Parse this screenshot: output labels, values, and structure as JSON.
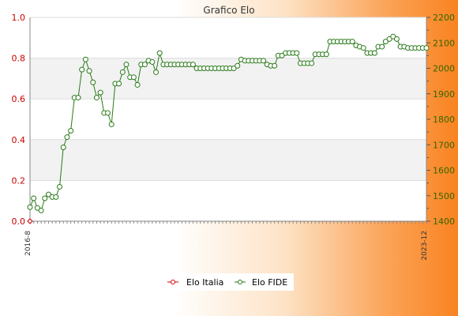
{
  "chart_data": {
    "type": "line",
    "title": "Grafico Elo",
    "y_left": {
      "min": 0,
      "max": 1,
      "ticks": [
        "0.0",
        "0.2",
        "0.4",
        "0.6",
        "0.8",
        "1.0"
      ],
      "color": "#cc0000"
    },
    "y_right": {
      "min": 1400,
      "max": 2200,
      "ticks": [
        "1400",
        "1500",
        "1600",
        "1700",
        "1800",
        "1900",
        "2000",
        "2100",
        "2200"
      ],
      "color": "#336600"
    },
    "x_first_label": "2016-8",
    "x_last_label": "2023-12",
    "grid": true,
    "legend_position": "bottom",
    "series": [
      {
        "name": "Elo Italia",
        "color": "#cc0000",
        "axis": "left",
        "values": [
          0
        ]
      },
      {
        "name": "Elo FIDE",
        "color": "#2a7a1a",
        "axis": "right",
        "values": [
          1455,
          1490,
          1452,
          1442,
          1490,
          1505,
          1495,
          1495,
          1535,
          1690,
          1730,
          1755,
          1885,
          1885,
          1995,
          2035,
          1990,
          1945,
          1885,
          1905,
          1825,
          1825,
          1780,
          1940,
          1940,
          1985,
          2015,
          1965,
          1965,
          1935,
          2015,
          2015,
          2030,
          2025,
          1985,
          2060,
          2015,
          2015,
          2015,
          2015,
          2015,
          2015,
          2015,
          2015,
          2015,
          2000,
          2000,
          2000,
          2000,
          2000,
          2000,
          2000,
          2000,
          2000,
          2000,
          2000,
          2010,
          2035,
          2030,
          2030,
          2030,
          2030,
          2030,
          2030,
          2015,
          2010,
          2010,
          2050,
          2050,
          2060,
          2060,
          2060,
          2060,
          2020,
          2020,
          2020,
          2020,
          2055,
          2055,
          2055,
          2055,
          2105,
          2105,
          2105,
          2105,
          2105,
          2105,
          2105,
          2090,
          2085,
          2080,
          2060,
          2060,
          2060,
          2085,
          2085,
          2105,
          2115,
          2125,
          2115,
          2085,
          2085,
          2080,
          2080,
          2080,
          2080,
          2080,
          2080
        ]
      }
    ]
  }
}
